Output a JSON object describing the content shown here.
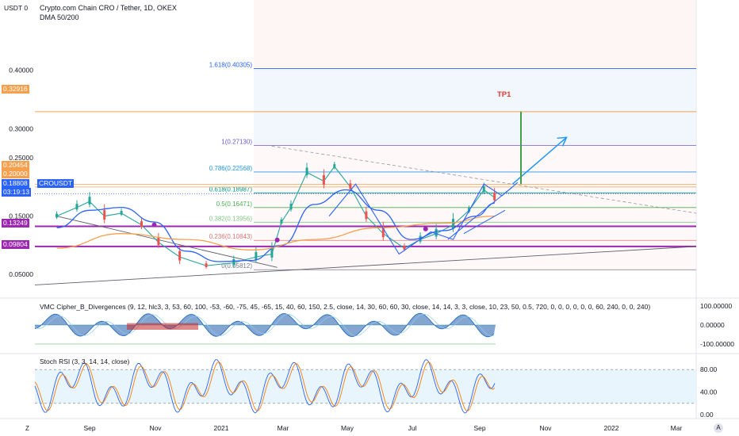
{
  "header": {
    "currency_label": "USDT",
    "currency_zero": "0",
    "symbol_title": "Crypto.com Chain CRO / Tether, 1D, OKEX",
    "indicator": "DMA 50/200"
  },
  "price_tags": {
    "p1": {
      "text": "0.32916",
      "color": "#f6a04d"
    },
    "p2": {
      "text": "0.20454",
      "color": "#f6a04d"
    },
    "p3": {
      "text": "0.20000",
      "color": "#f6a04d"
    },
    "p4": {
      "text": "0.18808",
      "color": "#2962ff"
    },
    "timer": {
      "text": "03:19:13",
      "color": "#2962ff"
    },
    "p5": {
      "text": "0.13249",
      "color": "#9c27b0"
    },
    "p6": {
      "text": "0.09804",
      "color": "#9c27b0"
    }
  },
  "symbol_label": "CROUSDT",
  "tp_label": "TP1",
  "corner_z": "Z",
  "corner_a": "A",
  "chart_data": [
    {
      "type": "line",
      "title": "Crypto.com Chain CRO / Tether, 1D, OKEX",
      "y_axis_ticks": [
        "0.40000",
        "0.30000",
        "0.25000",
        "0.15000",
        "0.05000"
      ],
      "y_tick_values": [
        0.4,
        0.3,
        0.25,
        0.15,
        0.05
      ],
      "x_axis_labels": [
        "Sep",
        "Nov",
        "2021",
        "Mar",
        "May",
        "Jul",
        "Sep",
        "Nov",
        "2022",
        "Mar"
      ],
      "fib_levels": [
        {
          "label": "1.618(0.40305)",
          "value": 0.40305,
          "color": "#2962ff"
        },
        {
          "label": "1(0.27130)",
          "value": 0.2713,
          "color": "#6a5acd"
        },
        {
          "label": "0.786(0.22568)",
          "value": 0.22568,
          "color": "#2196f3"
        },
        {
          "label": "0.618(0.18987)",
          "value": 0.18987,
          "color": "#009688"
        },
        {
          "label": "0.5(0.16471)",
          "value": 0.16471,
          "color": "#4caf50"
        },
        {
          "label": "0.382(0.13956)",
          "value": 0.13956,
          "color": "#81c784"
        },
        {
          "label": "0.236(0.10843)",
          "value": 0.10843,
          "color": "#e57373"
        },
        {
          "label": "0(0.05812)",
          "value": 0.05812,
          "color": "#787b86"
        }
      ],
      "horizontal_levels": [
        0.32916,
        0.20454,
        0.2,
        0.13249,
        0.09804
      ],
      "price_series": [
        {
          "d": "2020-08-01",
          "v": 0.15
        },
        {
          "d": "2020-08-20",
          "v": 0.165
        },
        {
          "d": "2020-09-01",
          "v": 0.175
        },
        {
          "d": "2020-09-15",
          "v": 0.15
        },
        {
          "d": "2020-10-01",
          "v": 0.155
        },
        {
          "d": "2020-10-20",
          "v": 0.135
        },
        {
          "d": "2020-11-05",
          "v": 0.105
        },
        {
          "d": "2020-11-25",
          "v": 0.08
        },
        {
          "d": "2020-12-20",
          "v": 0.065
        },
        {
          "d": "2021-01-15",
          "v": 0.07
        },
        {
          "d": "2021-02-05",
          "v": 0.08
        },
        {
          "d": "2021-02-20",
          "v": 0.085
        },
        {
          "d": "2021-03-01",
          "v": 0.14
        },
        {
          "d": "2021-03-10",
          "v": 0.165
        },
        {
          "d": "2021-03-25",
          "v": 0.225
        },
        {
          "d": "2021-04-10",
          "v": 0.21
        },
        {
          "d": "2021-04-20",
          "v": 0.235
        },
        {
          "d": "2021-05-05",
          "v": 0.2
        },
        {
          "d": "2021-05-20",
          "v": 0.15
        },
        {
          "d": "2021-06-05",
          "v": 0.12
        },
        {
          "d": "2021-06-25",
          "v": 0.095
        },
        {
          "d": "2021-07-10",
          "v": 0.11
        },
        {
          "d": "2021-07-25",
          "v": 0.12
        },
        {
          "d": "2021-08-10",
          "v": 0.135
        },
        {
          "d": "2021-08-25",
          "v": 0.16
        },
        {
          "d": "2021-09-08",
          "v": 0.195
        },
        {
          "d": "2021-09-18",
          "v": 0.182
        }
      ],
      "dma_50": [
        {
          "d": "2020-08-01",
          "v": 0.13
        },
        {
          "d": "2020-09-01",
          "v": 0.16
        },
        {
          "d": "2020-10-01",
          "v": 0.165
        },
        {
          "d": "2020-11-01",
          "v": 0.14
        },
        {
          "d": "2020-12-01",
          "v": 0.09
        },
        {
          "d": "2021-01-01",
          "v": 0.072
        },
        {
          "d": "2021-02-01",
          "v": 0.074
        },
        {
          "d": "2021-03-01",
          "v": 0.1
        },
        {
          "d": "2021-04-01",
          "v": 0.17
        },
        {
          "d": "2021-05-01",
          "v": 0.195
        },
        {
          "d": "2021-06-01",
          "v": 0.16
        },
        {
          "d": "2021-07-01",
          "v": 0.11
        },
        {
          "d": "2021-08-01",
          "v": 0.125
        },
        {
          "d": "2021-09-01",
          "v": 0.15
        },
        {
          "d": "2021-09-18",
          "v": 0.172
        }
      ],
      "dma_200": [
        {
          "d": "2020-08-01",
          "v": 0.095
        },
        {
          "d": "2020-10-01",
          "v": 0.12
        },
        {
          "d": "2020-12-01",
          "v": 0.11
        },
        {
          "d": "2021-02-01",
          "v": 0.092
        },
        {
          "d": "2021-04-01",
          "v": 0.11
        },
        {
          "d": "2021-06-01",
          "v": 0.13
        },
        {
          "d": "2021-08-01",
          "v": 0.138
        },
        {
          "d": "2021-09-18",
          "v": 0.15
        }
      ]
    },
    {
      "type": "area",
      "title": "VMC Cipher_B_Divergences (9, 12, hlc3, 3, 53, 60, 100, -53, -60, -75, 45, -65, 15, 40, 60, 150, 2.5, close, 14, 30, 60, 60, 30, close, 14, 14, 3, 3, close, 10, 23, 50, 0.5, 720, 0, 0, 0, 0, 0, 0, 60, 240, 0, 0, 240)",
      "y_axis_ticks": [
        "100.00000",
        "0.00000",
        "-100.00000"
      ],
      "y_tick_values": [
        100,
        0,
        -100
      ]
    },
    {
      "type": "line",
      "title": "Stoch RSI (3, 3, 14, 14, close)",
      "y_axis_ticks": [
        "80.00",
        "40.00",
        "0.00"
      ],
      "y_tick_values": [
        80,
        40,
        0
      ],
      "band": [
        20,
        80
      ]
    }
  ]
}
